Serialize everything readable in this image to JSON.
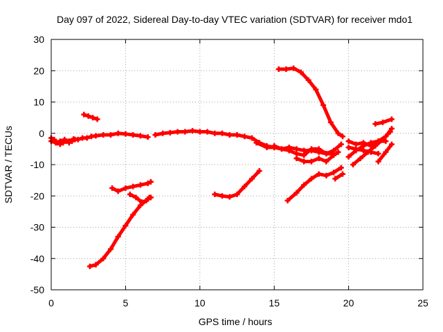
{
  "chart_data": {
    "type": "scatter",
    "title": "Day 097 of 2022, Sidereal Day-to-day VTEC variation (SDTVAR) for receiver mdo1",
    "xlabel": "GPS time / hours",
    "ylabel": "SDTVAR / TECUs",
    "xlim": [
      0,
      25
    ],
    "ylim": [
      -50,
      30
    ],
    "xticks": [
      0,
      5,
      10,
      15,
      20,
      25
    ],
    "yticks": [
      -50,
      -40,
      -30,
      -20,
      -10,
      0,
      10,
      20,
      30
    ],
    "xtick_labels": [
      "0",
      "5",
      "10",
      "15",
      "20",
      "25"
    ],
    "ytick_labels": [
      "-50",
      "-40",
      "-30",
      "-20",
      "-10",
      "0",
      "10",
      "20",
      "30"
    ],
    "grid": true,
    "legend": "none",
    "marker": "plus",
    "color": "#ff0000",
    "series": [
      {
        "name": "track-1",
        "x": [
          0,
          0.3,
          0.6,
          0.9,
          1.2,
          1.5,
          1.8,
          2.1,
          2.4,
          2.7,
          3.0,
          3.5,
          4.0,
          4.5,
          5.0,
          5.5,
          6.0,
          6.5
        ],
        "y": [
          -2.5,
          -3,
          -2.5,
          -2,
          -2.5,
          -1.8,
          -2,
          -1.5,
          -1.5,
          -1,
          -0.8,
          -0.5,
          -0.5,
          0,
          -0.2,
          -0.5,
          -0.8,
          -1.2
        ]
      },
      {
        "name": "track-2",
        "x": [
          0,
          0.2,
          0.4,
          0.6,
          0.8,
          1.0,
          1.2,
          1.4,
          1.6
        ],
        "y": [
          -1.5,
          -2,
          -3,
          -3.5,
          -3,
          -2.5,
          -3,
          -2.5,
          -2
        ]
      },
      {
        "name": "track-3",
        "x": [
          7.0,
          7.5,
          8.0,
          8.5,
          9.0,
          9.5,
          10.0,
          10.5,
          11.0,
          11.5,
          12.0,
          12.5,
          13.0,
          13.5,
          14.0,
          14.5,
          15.0
        ],
        "y": [
          -0.5,
          0,
          0.2,
          0.5,
          0.5,
          0.8,
          0.5,
          0.5,
          0,
          0,
          -0.5,
          -0.5,
          -1,
          -1.5,
          -3,
          -4,
          -4.5
        ]
      },
      {
        "name": "track-4",
        "x": [
          2.2,
          2.5,
          2.8,
          3.1
        ],
        "y": [
          6,
          5.5,
          5,
          4.5
        ]
      },
      {
        "name": "track-5",
        "x": [
          2.6,
          3.0,
          3.5,
          4.0,
          4.5,
          5.0,
          5.5,
          6.0,
          6.5,
          6.7
        ],
        "y": [
          -42.5,
          -42,
          -40,
          -37,
          -33,
          -29.5,
          -26,
          -23,
          -21,
          -20.5
        ]
      },
      {
        "name": "track-6",
        "x": [
          4.1,
          4.5,
          5.0,
          5.5,
          6.0,
          6.5,
          6.7
        ],
        "y": [
          -17.5,
          -18.5,
          -17.5,
          -17,
          -16.5,
          -16,
          -15.5
        ]
      },
      {
        "name": "track-7",
        "x": [
          5.3,
          5.7,
          6.1,
          6.4,
          6.6
        ],
        "y": [
          -19.5,
          -20.5,
          -22,
          -21.5,
          -20.5
        ]
      },
      {
        "name": "track-8",
        "x": [
          11.0,
          11.5,
          12.0,
          12.5,
          13.0,
          13.5,
          14.0
        ],
        "y": [
          -19.5,
          -20,
          -20.3,
          -19.5,
          -17,
          -14.5,
          -12
        ]
      },
      {
        "name": "track-9",
        "x": [
          15.3,
          15.8,
          16.3,
          16.8,
          17.3,
          17.8,
          18.3,
          18.8,
          19.3,
          19.6
        ],
        "y": [
          20.5,
          20.5,
          20.8,
          19.5,
          17,
          14,
          9,
          3.5,
          0,
          -1
        ]
      },
      {
        "name": "track-10",
        "x": [
          13.8,
          14.5,
          15.0,
          15.5,
          16.0,
          16.5,
          17.0,
          17.5,
          18.0,
          18.5,
          19.0
        ],
        "y": [
          -3,
          -4.5,
          -4.5,
          -5,
          -4.5,
          -5,
          -5.5,
          -5.5,
          -6,
          -6.5,
          -6.5
        ]
      },
      {
        "name": "track-11",
        "x": [
          15.0,
          15.5,
          16.0,
          16.5,
          17.0,
          17.5,
          18.0,
          18.5,
          19.0,
          19.5
        ],
        "y": [
          -4,
          -5,
          -5.5,
          -6.5,
          -7,
          -5,
          -5,
          -6.5,
          -5.5,
          -3.5
        ]
      },
      {
        "name": "track-12",
        "x": [
          16.5,
          17.0,
          17.5,
          18.0,
          18.5,
          19.0,
          19.3
        ],
        "y": [
          -8,
          -9,
          -9,
          -8,
          -9,
          -7,
          -6
        ]
      },
      {
        "name": "track-13",
        "x": [
          15.9,
          16.5,
          17.0,
          17.5,
          18.0,
          18.5,
          19.0,
          19.5
        ],
        "y": [
          -21.5,
          -19,
          -16.5,
          -14.5,
          -13,
          -13.5,
          -12.5,
          -11
        ]
      },
      {
        "name": "track-14",
        "x": [
          19.1,
          19.6
        ],
        "y": [
          -14.5,
          -13
        ]
      },
      {
        "name": "track-15",
        "x": [
          20.0,
          20.5,
          21.0,
          21.5,
          22.0,
          22.5,
          22.9
        ],
        "y": [
          -2.5,
          -3.5,
          -3,
          -4,
          -2.5,
          -1,
          1.5
        ]
      },
      {
        "name": "track-16",
        "x": [
          20.0,
          20.5,
          21.0,
          21.5,
          22.0
        ],
        "y": [
          -4.5,
          -5,
          -5.5,
          -6,
          -6.5
        ]
      },
      {
        "name": "track-17",
        "x": [
          20.0,
          20.5,
          21.0,
          21.5,
          22.0,
          22.5
        ],
        "y": [
          -7.5,
          -5.5,
          -4,
          -3,
          -2.5,
          -2.5
        ]
      },
      {
        "name": "track-18",
        "x": [
          20.3,
          20.8,
          21.3,
          21.8,
          22.3,
          22.8
        ],
        "y": [
          -10,
          -8,
          -6,
          -4,
          -2,
          0.5
        ]
      },
      {
        "name": "track-19",
        "x": [
          21.8,
          22.3,
          22.9
        ],
        "y": [
          3,
          3.5,
          4.5
        ]
      },
      {
        "name": "track-20",
        "x": [
          22.0,
          22.5,
          22.9
        ],
        "y": [
          -9,
          -6,
          -3.5
        ]
      }
    ]
  }
}
